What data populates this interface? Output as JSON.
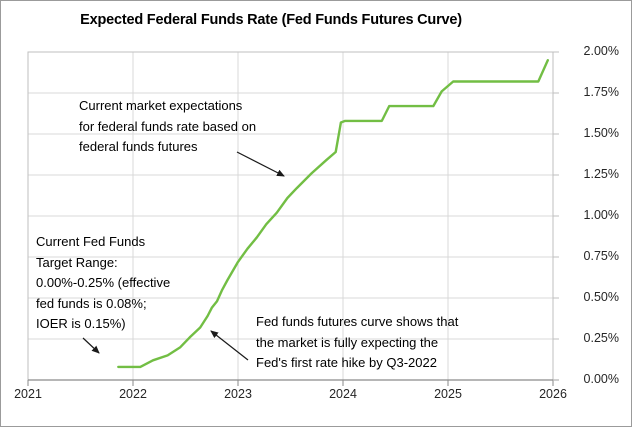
{
  "title": "Expected Federal Funds Rate (Fed Funds Futures Curve)",
  "chart_data": {
    "type": "line",
    "title": "Expected Federal Funds Rate (Fed Funds Futures Curve)",
    "xlabel": "",
    "ylabel": "",
    "xlim": [
      2021,
      2026
    ],
    "ylim": [
      0,
      2.0
    ],
    "grid": true,
    "legend": "none",
    "x_ticks": [
      {
        "label": "2021",
        "value": 2021
      },
      {
        "label": "2022",
        "value": 2022
      },
      {
        "label": "2023",
        "value": 2023
      },
      {
        "label": "2024",
        "value": 2024
      },
      {
        "label": "2025",
        "value": 2025
      },
      {
        "label": "2026",
        "value": 2026
      }
    ],
    "y_ticks": [
      {
        "label": "0.00%",
        "value": 0.0
      },
      {
        "label": "0.25%",
        "value": 0.25
      },
      {
        "label": "0.50%",
        "value": 0.5
      },
      {
        "label": "0.75%",
        "value": 0.75
      },
      {
        "label": "1.00%",
        "value": 1.0
      },
      {
        "label": "1.25%",
        "value": 1.25
      },
      {
        "label": "1.50%",
        "value": 1.5
      },
      {
        "label": "1.75%",
        "value": 1.75
      },
      {
        "label": "2.00%",
        "value": 2.0
      }
    ],
    "series": [
      {
        "name": "Fed funds futures curve",
        "color": "#72be44",
        "points": [
          [
            2021.86,
            0.08
          ],
          [
            2022.07,
            0.08
          ],
          [
            2022.19,
            0.12
          ],
          [
            2022.33,
            0.15
          ],
          [
            2022.45,
            0.2
          ],
          [
            2022.54,
            0.26
          ],
          [
            2022.64,
            0.32
          ],
          [
            2022.71,
            0.39
          ],
          [
            2022.75,
            0.44
          ],
          [
            2022.8,
            0.48
          ],
          [
            2022.85,
            0.55
          ],
          [
            2022.9,
            0.61
          ],
          [
            2023.0,
            0.72
          ],
          [
            2023.09,
            0.8
          ],
          [
            2023.18,
            0.87
          ],
          [
            2023.27,
            0.95
          ],
          [
            2023.37,
            1.02
          ],
          [
            2023.47,
            1.11
          ],
          [
            2023.56,
            1.17
          ],
          [
            2023.7,
            1.26
          ],
          [
            2023.84,
            1.34
          ],
          [
            2023.93,
            1.39
          ],
          [
            2023.98,
            1.57
          ],
          [
            2024.02,
            1.58
          ],
          [
            2024.37,
            1.58
          ],
          [
            2024.44,
            1.67
          ],
          [
            2024.86,
            1.67
          ],
          [
            2024.94,
            1.76
          ],
          [
            2025.05,
            1.82
          ],
          [
            2025.86,
            1.82
          ],
          [
            2025.95,
            1.95
          ]
        ]
      }
    ]
  },
  "annotations": {
    "market_expectations": {
      "lines": [
        "Current market expectations",
        "for federal funds rate based on",
        "federal funds futures"
      ]
    },
    "target_range": {
      "lines": [
        "Current Fed Funds",
        "Target Range:",
        "0.00%-0.25% (effective",
        "fed funds is 0.08%;",
        "IOER is 0.15%)"
      ]
    },
    "first_hike": {
      "lines": [
        "Fed funds futures curve shows that",
        "the market is fully expecting the",
        "Fed's first rate hike by Q3-2022"
      ]
    }
  }
}
